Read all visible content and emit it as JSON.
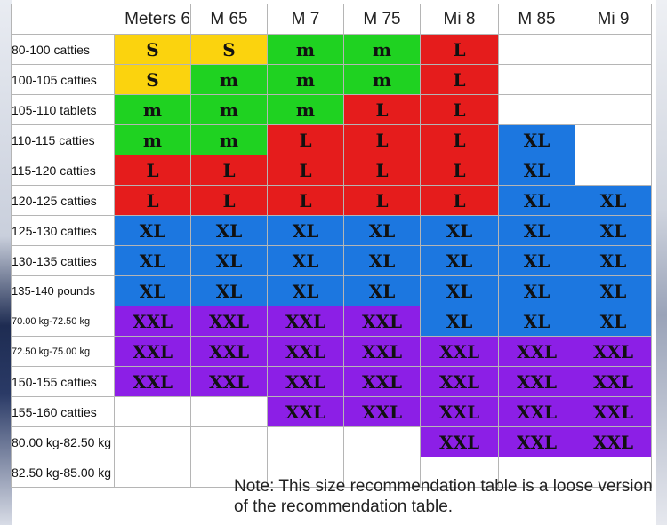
{
  "columns": [
    "Meters 6",
    "M 65",
    "M 7",
    "M 75",
    "Mi 8",
    "M 85",
    "Mi 9"
  ],
  "rows": [
    {
      "label": "80-100 catties",
      "sizes": [
        "S",
        "S",
        "m",
        "m",
        "L",
        "",
        ""
      ]
    },
    {
      "label": "100-105 catties",
      "sizes": [
        "S",
        "m",
        "m",
        "m",
        "L",
        "",
        ""
      ]
    },
    {
      "label": "105-110 tablets",
      "sizes": [
        "m",
        "m",
        "m",
        "L",
        "L",
        "",
        ""
      ]
    },
    {
      "label": "110-115 catties",
      "sizes": [
        "m",
        "m",
        "L",
        "L",
        "L",
        "XL",
        ""
      ]
    },
    {
      "label": "115-120 catties",
      "sizes": [
        "L",
        "L",
        "L",
        "L",
        "L",
        "XL",
        ""
      ]
    },
    {
      "label": "120-125 catties",
      "sizes": [
        "L",
        "L",
        "L",
        "L",
        "L",
        "XL",
        "XL"
      ]
    },
    {
      "label": "125-130 catties",
      "sizes": [
        "XL",
        "XL",
        "XL",
        "XL",
        "XL",
        "XL",
        "XL"
      ]
    },
    {
      "label": "130-135 catties",
      "sizes": [
        "XL",
        "XL",
        "XL",
        "XL",
        "XL",
        "XL",
        "XL"
      ]
    },
    {
      "label": "135-140 pounds",
      "sizes": [
        "XL",
        "XL",
        "XL",
        "XL",
        "XL",
        "XL",
        "XL"
      ]
    },
    {
      "label": "70.00 kg-72.50 kg",
      "sizes": [
        "XXL",
        "XXL",
        "XXL",
        "XXL",
        "XL",
        "XL",
        "XL"
      ]
    },
    {
      "label": "72.50 kg-75.00 kg",
      "sizes": [
        "XXL",
        "XXL",
        "XXL",
        "XXL",
        "XXL",
        "XXL",
        "XXL"
      ]
    },
    {
      "label": "150-155 catties",
      "sizes": [
        "XXL",
        "XXL",
        "XXL",
        "XXL",
        "XXL",
        "XXL",
        "XXL"
      ]
    },
    {
      "label": "155-160 catties",
      "sizes": [
        "",
        "",
        "XXL",
        "XXL",
        "XXL",
        "XXL",
        "XXL"
      ]
    },
    {
      "label": "80.00 kg-82.50 kg",
      "sizes": [
        "",
        "",
        "",
        "",
        "XXL",
        "XXL",
        "XXL"
      ]
    },
    {
      "label": "82.50 kg-85.00 kg",
      "sizes": [
        "",
        "",
        "",
        "",
        "",
        "",
        ""
      ]
    }
  ],
  "size_colors": {
    "S": "#fbd30e",
    "m": "#1fd221",
    "L": "#e51c1c",
    "XL": "#1c77e0",
    "XXL": "#8c1fe6",
    "": "#ffffff"
  },
  "note": "Note: This size recommendation table is a loose version of the recommendation table."
}
